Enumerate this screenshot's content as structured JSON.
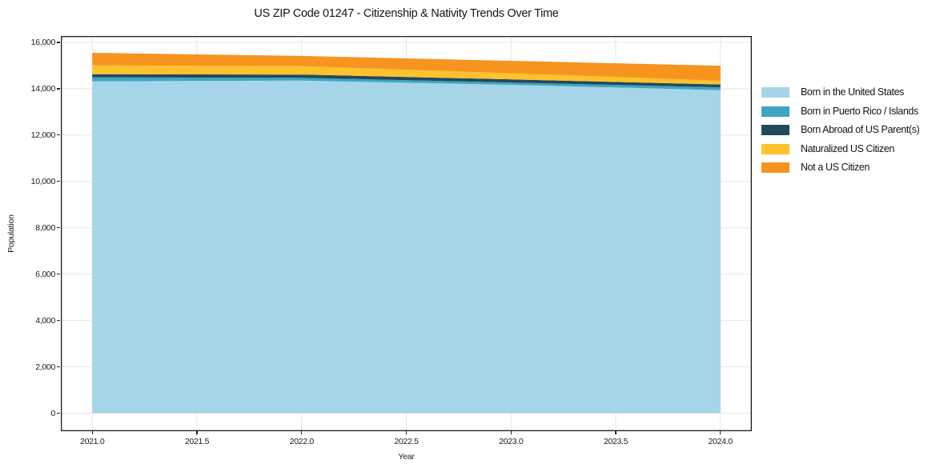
{
  "chart_data": {
    "type": "area",
    "stacked": true,
    "title": "US ZIP Code 01247 - Citizenship & Nativity Trends Over Time",
    "xlabel": "Year",
    "ylabel": "Population",
    "x": [
      2021,
      2022,
      2023,
      2024
    ],
    "series": [
      {
        "name": "Born in the United States",
        "color": "#a6d4e8",
        "values": [
          14320,
          14350,
          14170,
          13940
        ]
      },
      {
        "name": "Born in Puerto Rico / Islands",
        "color": "#3da6c2",
        "values": [
          170,
          120,
          95,
          120
        ]
      },
      {
        "name": "Born Abroad of US Parent(s)",
        "color": "#23495c",
        "values": [
          140,
          140,
          140,
          125
        ]
      },
      {
        "name": "Naturalized US Citizen",
        "color": "#fdc22d",
        "values": [
          380,
          365,
          260,
          160
        ]
      },
      {
        "name": "Not a US Citizen",
        "color": "#f7941f",
        "values": [
          540,
          440,
          540,
          645
        ]
      }
    ],
    "totals": [
      15550,
      15415,
      15205,
      14990
    ],
    "xlim": [
      2020.85,
      2024.15
    ],
    "ylim": [
      -775,
      16275
    ],
    "x_ticks": {
      "values": [
        2021.0,
        2021.5,
        2022.0,
        2022.5,
        2023.0,
        2023.5,
        2024.0
      ],
      "labels": [
        "2021.0",
        "2021.5",
        "2022.0",
        "2022.5",
        "2023.0",
        "2023.5",
        "2024.0"
      ]
    },
    "y_ticks": {
      "values": [
        0,
        2000,
        4000,
        6000,
        8000,
        10000,
        12000,
        14000,
        16000
      ],
      "labels": [
        "0",
        "2,000",
        "4,000",
        "6,000",
        "8,000",
        "10,000",
        "12,000",
        "14,000",
        "16,000"
      ]
    },
    "grid": true,
    "legend_position": "right-outside",
    "colors": {
      "grid": "#e7e7e7",
      "spine": "#1c1c1c",
      "background": "#ffffff",
      "text": "#1a1a1a"
    }
  }
}
